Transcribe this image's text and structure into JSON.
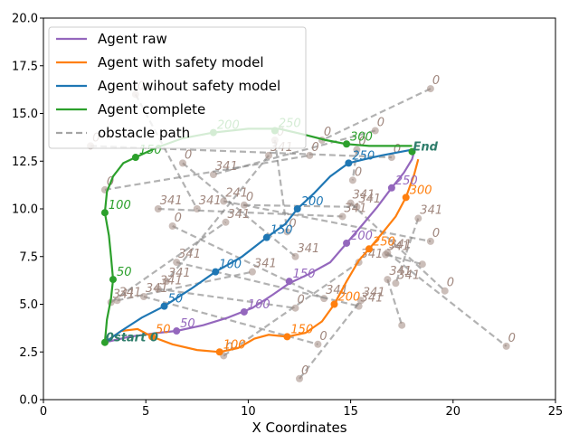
{
  "chart_data": {
    "type": "line",
    "xlabel": "X Coordinates",
    "ylabel": "",
    "xlim": [
      0,
      25
    ],
    "ylim": [
      0,
      20
    ],
    "x_ticks": [
      0,
      5,
      10,
      15,
      20,
      25
    ],
    "y_ticks": [
      0.0,
      2.5,
      5.0,
      7.5,
      10.0,
      12.5,
      15.0,
      17.5,
      20.0
    ],
    "grid": false,
    "legend_position": "top-left",
    "colors": {
      "agent_raw": "#9467bd",
      "agent_safety": "#ff7f0e",
      "agent_without": "#1f77b4",
      "agent_complete": "#2ca02c",
      "obstacle": "#7f7f7f"
    },
    "series": [
      {
        "name": "Agent raw",
        "key": "agent_raw",
        "points": [
          [
            3.0,
            3.0
          ],
          [
            4.2,
            3.3
          ],
          [
            5.6,
            3.5
          ],
          [
            6.5,
            3.6
          ],
          [
            7.8,
            3.9
          ],
          [
            9.0,
            4.3
          ],
          [
            10.2,
            4.8
          ],
          [
            11.2,
            5.5
          ],
          [
            12.0,
            6.1
          ],
          [
            13.0,
            6.6
          ],
          [
            14.0,
            7.2
          ],
          [
            14.8,
            8.2
          ],
          [
            15.6,
            9.2
          ],
          [
            16.3,
            10.1
          ],
          [
            17.0,
            11.1
          ],
          [
            17.6,
            11.9
          ],
          [
            18.0,
            12.6
          ],
          [
            18.1,
            13.0
          ]
        ],
        "markers": [
          [
            6.5,
            3.6
          ],
          [
            9.8,
            4.6
          ],
          [
            12.0,
            6.2
          ],
          [
            14.8,
            8.2
          ],
          [
            17.0,
            11.1
          ]
        ],
        "annotations": [
          {
            "text": "50",
            "x": 6.5,
            "y": 3.6
          },
          {
            "text": "100",
            "x": 9.8,
            "y": 4.6
          },
          {
            "text": "150",
            "x": 12.0,
            "y": 6.2
          },
          {
            "text": "200",
            "x": 14.8,
            "y": 8.2
          },
          {
            "text": "250",
            "x": 17.0,
            "y": 11.1
          }
        ]
      },
      {
        "name": "Agent with safety model",
        "key": "agent_safety",
        "points": [
          [
            3.0,
            3.0
          ],
          [
            3.8,
            3.6
          ],
          [
            4.6,
            3.7
          ],
          [
            5.3,
            3.3
          ],
          [
            6.3,
            2.9
          ],
          [
            7.5,
            2.6
          ],
          [
            8.6,
            2.5
          ],
          [
            9.5,
            2.7
          ],
          [
            10.3,
            3.2
          ],
          [
            11.0,
            3.4
          ],
          [
            11.9,
            3.3
          ],
          [
            12.8,
            3.5
          ],
          [
            13.6,
            4.1
          ],
          [
            14.2,
            5.0
          ],
          [
            14.8,
            6.2
          ],
          [
            15.4,
            7.3
          ],
          [
            15.9,
            7.9
          ],
          [
            16.6,
            8.8
          ],
          [
            17.2,
            9.6
          ],
          [
            17.7,
            10.6
          ],
          [
            18.1,
            11.8
          ],
          [
            18.3,
            12.6
          ]
        ],
        "markers": [
          [
            5.3,
            3.3
          ],
          [
            8.6,
            2.5
          ],
          [
            11.9,
            3.3
          ],
          [
            14.2,
            5.0
          ],
          [
            15.9,
            7.9
          ],
          [
            17.7,
            10.6
          ]
        ],
        "annotations": [
          {
            "text": "50",
            "x": 5.3,
            "y": 3.3
          },
          {
            "text": "100",
            "x": 8.6,
            "y": 2.5
          },
          {
            "text": "150",
            "x": 11.9,
            "y": 3.3
          },
          {
            "text": "200",
            "x": 14.2,
            "y": 5.0
          },
          {
            "text": "250",
            "x": 15.9,
            "y": 7.9
          },
          {
            "text": "300",
            "x": 17.7,
            "y": 10.6
          }
        ]
      },
      {
        "name": "Agent wihout safety model",
        "key": "agent_without",
        "points": [
          [
            3.0,
            3.0
          ],
          [
            3.8,
            3.6
          ],
          [
            4.8,
            4.3
          ],
          [
            5.9,
            4.9
          ],
          [
            7.2,
            5.8
          ],
          [
            8.4,
            6.7
          ],
          [
            9.7,
            7.5
          ],
          [
            10.9,
            8.5
          ],
          [
            11.8,
            9.2
          ],
          [
            12.4,
            10.0
          ],
          [
            13.2,
            10.8
          ],
          [
            14.0,
            11.7
          ],
          [
            14.9,
            12.4
          ],
          [
            15.7,
            12.6
          ],
          [
            16.5,
            12.8
          ],
          [
            17.5,
            13.0
          ],
          [
            18.0,
            13.1
          ]
        ],
        "markers": [
          [
            5.9,
            4.9
          ],
          [
            8.4,
            6.7
          ],
          [
            10.9,
            8.5
          ],
          [
            12.4,
            10.0
          ],
          [
            14.9,
            12.4
          ]
        ],
        "annotations": [
          {
            "text": "50",
            "x": 5.9,
            "y": 4.9
          },
          {
            "text": "100",
            "x": 8.4,
            "y": 6.7
          },
          {
            "text": "150",
            "x": 10.9,
            "y": 8.5
          },
          {
            "text": "200",
            "x": 12.4,
            "y": 10.0
          },
          {
            "text": "250",
            "x": 14.9,
            "y": 12.4
          }
        ]
      },
      {
        "name": "Agent complete",
        "key": "agent_complete",
        "points": [
          [
            3.0,
            3.0
          ],
          [
            3.1,
            4.2
          ],
          [
            3.3,
            5.3
          ],
          [
            3.4,
            6.3
          ],
          [
            3.3,
            7.5
          ],
          [
            3.2,
            8.6
          ],
          [
            3.0,
            9.8
          ],
          [
            3.1,
            10.9
          ],
          [
            3.4,
            11.7
          ],
          [
            3.9,
            12.4
          ],
          [
            4.5,
            12.7
          ],
          [
            5.5,
            13.2
          ],
          [
            6.8,
            13.7
          ],
          [
            8.3,
            14.0
          ],
          [
            10.0,
            14.2
          ],
          [
            11.5,
            14.2
          ],
          [
            12.7,
            13.9
          ],
          [
            13.8,
            13.6
          ],
          [
            14.8,
            13.4
          ],
          [
            15.9,
            13.3
          ],
          [
            17.0,
            13.3
          ],
          [
            18.0,
            13.3
          ]
        ],
        "markers": [
          [
            3.4,
            6.3
          ],
          [
            3.0,
            9.8
          ],
          [
            4.5,
            12.7
          ],
          [
            8.3,
            14.0
          ],
          [
            11.3,
            14.1
          ],
          [
            14.8,
            13.4
          ]
        ],
        "annotations": [
          {
            "text": "50",
            "x": 3.4,
            "y": 6.3
          },
          {
            "text": "100",
            "x": 3.0,
            "y": 9.8
          },
          {
            "text": "150",
            "x": 4.5,
            "y": 12.7
          },
          {
            "text": "200",
            "x": 8.3,
            "y": 14.0
          },
          {
            "text": "250",
            "x": 11.3,
            "y": 14.1
          },
          {
            "text": "300",
            "x": 14.8,
            "y": 13.4
          }
        ]
      },
      {
        "name": "obstacle path",
        "key": "obstacle"
      }
    ],
    "start_end": [
      {
        "text": "0start 0",
        "x": 3.0,
        "y": 3.0
      },
      {
        "text": "End",
        "x": 18.0,
        "y": 13.0
      }
    ],
    "obstacle_paths": [
      {
        "from": [
          18.9,
          16.3
        ],
        "to": [
          13.6,
          13.6
        ],
        "label_start": "0",
        "label_end": "0"
      },
      {
        "from": [
          16.2,
          14.1
        ],
        "to": [
          8.3,
          11.8
        ],
        "label_start": "0",
        "label_end": "341"
      },
      {
        "from": [
          4.5,
          16.0
        ],
        "to": [
          7.5,
          10.0
        ],
        "label_start": "0",
        "label_end": "341"
      },
      {
        "from": [
          2.3,
          13.3
        ],
        "to": [
          17.0,
          12.7
        ],
        "label_start": "0",
        "label_end": "0"
      },
      {
        "from": [
          3.0,
          11.0
        ],
        "to": [
          13.0,
          12.8
        ],
        "label_start": "0",
        "label_end": "0"
      },
      {
        "from": [
          6.8,
          12.4
        ],
        "to": [
          12.3,
          7.5
        ],
        "label_start": "0",
        "label_end": "341"
      },
      {
        "from": [
          11.0,
          12.8
        ],
        "to": [
          6.0,
          6.2
        ],
        "label_start": "341",
        "label_end": "341"
      },
      {
        "from": [
          5.6,
          10.0
        ],
        "to": [
          14.6,
          9.6
        ],
        "label_start": "341",
        "label_end": "341"
      },
      {
        "from": [
          6.3,
          9.1
        ],
        "to": [
          13.7,
          5.3
        ],
        "label_start": "0",
        "label_end": "341"
      },
      {
        "from": [
          8.8,
          10.4
        ],
        "to": [
          18.9,
          8.3
        ],
        "label_start": "241",
        "label_end": "0"
      },
      {
        "from": [
          9.8,
          10.2
        ],
        "to": [
          15.3,
          10.1
        ],
        "label_start": "0",
        "label_end": "341"
      },
      {
        "from": [
          15.3,
          13.1
        ],
        "to": [
          15.1,
          11.5
        ],
        "label_start": "0",
        "label_end": "0"
      },
      {
        "from": [
          11.3,
          13.6
        ],
        "to": [
          11.9,
          8.8
        ],
        "label_start": "0",
        "label_end": "0"
      },
      {
        "from": [
          15.0,
          10.3
        ],
        "to": [
          19.6,
          5.7
        ],
        "label_start": "341",
        "label_end": "0"
      },
      {
        "from": [
          16.8,
          7.7
        ],
        "to": [
          22.6,
          2.8
        ],
        "label_start": "341",
        "label_end": "0"
      },
      {
        "from": [
          18.3,
          9.5
        ],
        "to": [
          17.2,
          6.1
        ],
        "label_start": "341",
        "label_end": "341"
      },
      {
        "from": [
          16.8,
          6.3
        ],
        "to": [
          17.5,
          3.9
        ],
        "label_start": "341",
        "label_end": ""
      },
      {
        "from": [
          3.6,
          5.2
        ],
        "to": [
          10.2,
          6.7
        ],
        "label_start": "341",
        "label_end": "341"
      },
      {
        "from": [
          4.9,
          5.4
        ],
        "to": [
          13.4,
          2.9
        ],
        "label_start": "341",
        "label_end": "0"
      },
      {
        "from": [
          6.5,
          7.2
        ],
        "to": [
          15.4,
          4.9
        ],
        "label_start": "341",
        "label_end": "341"
      },
      {
        "from": [
          3.3,
          5.1
        ],
        "to": [
          8.9,
          9.3
        ],
        "label_start": "341",
        "label_end": "341"
      },
      {
        "from": [
          8.8,
          2.3
        ],
        "to": [
          15.4,
          7.2
        ],
        "label_start": "0",
        "label_end": "341"
      },
      {
        "from": [
          12.5,
          1.1
        ],
        "to": [
          15.5,
          5.2
        ],
        "label_start": "0",
        "label_end": "341"
      },
      {
        "from": [
          5.6,
          5.8
        ],
        "to": [
          12.3,
          4.8
        ],
        "label_start": "341",
        "label_end": "0"
      },
      {
        "from": [
          16.7,
          7.6
        ],
        "to": [
          18.5,
          7.1
        ],
        "label_start": "341",
        "label_end": ""
      }
    ]
  }
}
